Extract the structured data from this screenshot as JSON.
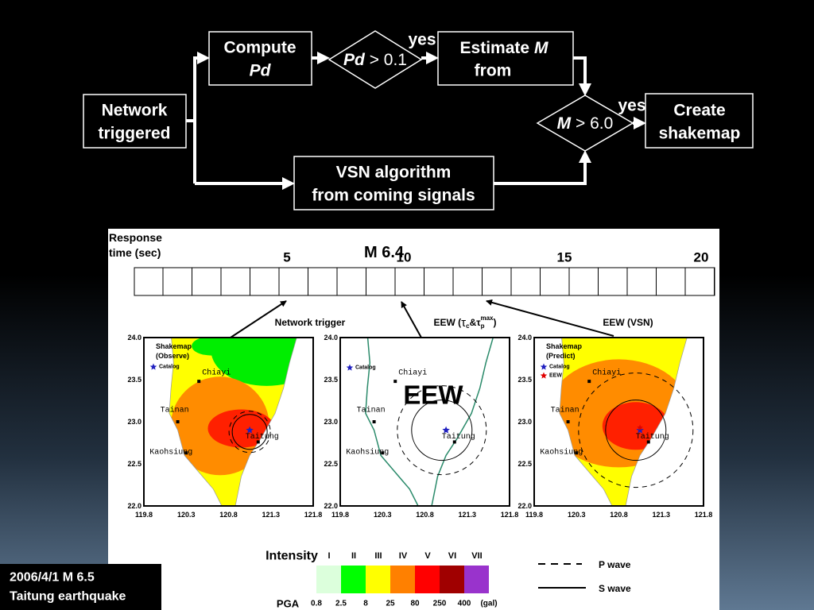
{
  "flowchart": {
    "nodes": {
      "network": [
        "Network",
        "triggered"
      ],
      "compute": [
        "Compute",
        "Pd"
      ],
      "pd_check": [
        "Pd",
        "> 0.1"
      ],
      "estimate": [
        "Estimate",
        "M",
        "from"
      ],
      "m_check": [
        "M",
        "> 6.0"
      ],
      "shakemap": [
        "Create",
        "shakemap"
      ],
      "vsn": [
        "VSN algorithm",
        "from coming signals"
      ]
    },
    "edge_labels": [
      "yes",
      "yes"
    ]
  },
  "figure": {
    "response_time_label": [
      "Response",
      "time (sec)"
    ],
    "event_label": "M 6.4",
    "time_ticks": [
      "5",
      "10",
      "15",
      "20"
    ],
    "stage_labels": {
      "network_trigger": "Network trigger",
      "eew_tau": [
        "EEW (",
        "τ",
        "c",
        "&τ",
        "p",
        "max",
        ")"
      ],
      "eew_vsn": "EEW (VSN)"
    },
    "map_axes": {
      "yticks": [
        "24.0",
        "23.5",
        "23.0",
        "22.5",
        "22.0"
      ],
      "xticks": [
        "119.8",
        "120.3",
        "120.8",
        "121.3",
        "121.8"
      ]
    },
    "cities": [
      "Chiayi",
      "Tainan",
      "Kaohsiung",
      "Taitung"
    ],
    "maps": [
      {
        "legend": [
          "Shakemap",
          "(Observe)"
        ],
        "markers": [
          "Catalog"
        ]
      },
      {
        "markers": [
          "Catalog"
        ],
        "overlay": "EEW"
      },
      {
        "legend": [
          "Shakemap",
          "(Predict)"
        ],
        "markers": [
          "Catalog",
          "EEW"
        ]
      }
    ],
    "intensity": {
      "title": "Intensity",
      "levels": [
        "I",
        "II",
        "III",
        "IV",
        "V",
        "VI",
        "VII"
      ],
      "pga_title": "PGA",
      "pga_values": [
        "0.8",
        "2.5",
        "8",
        "25",
        "80",
        "250",
        "400"
      ],
      "pga_unit": "(gal)"
    },
    "wave_legend": [
      "P wave",
      "S wave"
    ]
  },
  "caption": [
    "2006/4/1 M 6.5",
    "Taitung earthquake"
  ]
}
